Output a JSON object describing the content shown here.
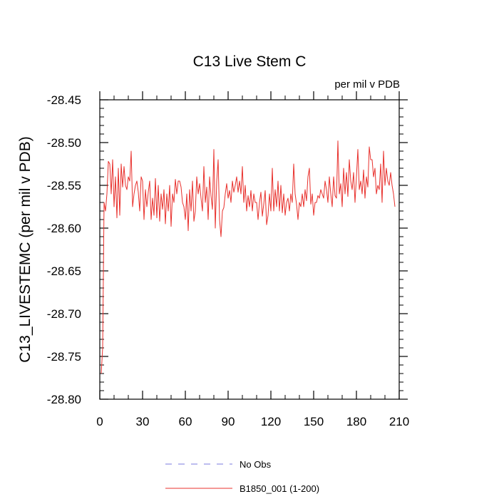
{
  "chart_data": {
    "type": "line",
    "title": "C13 Live Stem C",
    "units": "per mil v PDB",
    "xlabel": "",
    "ylabel": "C13_LIVESTEMC  (per mil v PDB)",
    "xlim": [
      0,
      210
    ],
    "ylim": [
      -28.8,
      -28.45
    ],
    "xticks": [
      0,
      30,
      60,
      90,
      120,
      150,
      180,
      210
    ],
    "xtick_labels": [
      "0",
      "30",
      "60",
      "90",
      "120",
      "150",
      "180",
      "210"
    ],
    "yticks": [
      -28.8,
      -28.75,
      -28.7,
      -28.65,
      -28.6,
      -28.55,
      -28.5,
      -28.45
    ],
    "ytick_labels": [
      "-28.80",
      "-28.75",
      "-28.70",
      "-28.65",
      "-28.60",
      "-28.55",
      "-28.50",
      "-28.45"
    ],
    "legend": [
      {
        "label": "No Obs",
        "color": "#7b7bdf",
        "style": "dashed"
      },
      {
        "label": "B1850_001 (1-200)",
        "color": "#e8302c",
        "style": "solid"
      }
    ],
    "series": [
      {
        "name": "B1850_001 (1-200)",
        "color": "#e8302c",
        "x_start": 1,
        "x_step": 1,
        "values": [
          -28.77,
          -28.74,
          -28.57,
          -28.58,
          -28.56,
          -28.522,
          -28.525,
          -28.56,
          -28.52,
          -28.575,
          -28.54,
          -28.588,
          -28.53,
          -28.585,
          -28.525,
          -28.552,
          -28.528,
          -28.55,
          -28.555,
          -28.54,
          -28.545,
          -28.51,
          -28.575,
          -28.56,
          -28.55,
          -28.545,
          -28.558,
          -28.58,
          -28.54,
          -28.545,
          -28.59,
          -28.555,
          -28.575,
          -28.558,
          -28.545,
          -28.59,
          -28.565,
          -28.585,
          -28.542,
          -28.588,
          -28.55,
          -28.592,
          -28.56,
          -28.578,
          -28.555,
          -28.595,
          -28.56,
          -28.58,
          -28.55,
          -28.598,
          -28.56,
          -28.57,
          -28.543,
          -28.56,
          -28.545,
          -28.545,
          -28.552,
          -28.57,
          -28.575,
          -28.59,
          -28.56,
          -28.603,
          -28.555,
          -28.58,
          -28.545,
          -28.592,
          -28.58,
          -28.54,
          -28.56,
          -28.548,
          -28.565,
          -28.58,
          -28.528,
          -28.57,
          -28.552,
          -28.59,
          -28.54,
          -28.562,
          -28.578,
          -28.508,
          -28.6,
          -28.545,
          -28.52,
          -28.59,
          -28.61,
          -28.58,
          -28.576,
          -28.56,
          -28.548,
          -28.565,
          -28.556,
          -28.57,
          -28.545,
          -28.558,
          -28.55,
          -28.54,
          -28.558,
          -28.545,
          -28.56,
          -28.528,
          -28.57,
          -28.55,
          -28.58,
          -28.562,
          -28.575,
          -28.556,
          -28.58,
          -28.56,
          -28.57,
          -28.57,
          -28.59,
          -28.57,
          -28.558,
          -28.586,
          -28.572,
          -28.556,
          -28.596,
          -28.585,
          -28.56,
          -28.58,
          -28.53,
          -28.58,
          -28.555,
          -28.575,
          -28.545,
          -28.58,
          -28.55,
          -28.582,
          -28.56,
          -28.585,
          -28.57,
          -28.565,
          -28.58,
          -28.56,
          -28.57,
          -28.525,
          -28.56,
          -28.572,
          -28.59,
          -28.57,
          -28.575,
          -28.56,
          -28.575,
          -28.555,
          -28.568,
          -28.54,
          -28.53,
          -28.572,
          -28.56,
          -28.585,
          -28.57,
          -28.57,
          -28.562,
          -28.565,
          -28.555,
          -28.56,
          -28.565,
          -28.545,
          -28.555,
          -28.57,
          -28.54,
          -28.56,
          -28.575,
          -28.54,
          -28.562,
          -28.565,
          -28.498,
          -28.56,
          -28.548,
          -28.575,
          -28.53,
          -28.56,
          -28.535,
          -28.563,
          -28.52,
          -28.545,
          -28.555,
          -28.535,
          -28.57,
          -28.54,
          -28.508,
          -28.555,
          -28.545,
          -28.56,
          -28.532,
          -28.565,
          -28.54,
          -28.552,
          -28.505,
          -28.52,
          -28.52,
          -28.54,
          -28.53,
          -28.56,
          -28.55,
          -28.555,
          -28.525,
          -28.57,
          -28.51,
          -28.55,
          -28.53,
          -28.545,
          -28.55,
          -28.535,
          -28.55,
          -28.56,
          -28.575
        ]
      }
    ]
  }
}
